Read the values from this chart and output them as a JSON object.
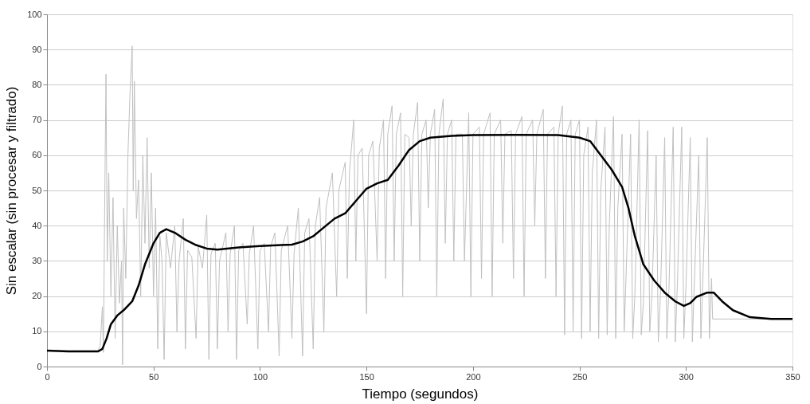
{
  "chart_data": {
    "type": "line",
    "xlabel": "Tiempo (segundos)",
    "ylabel": "Sin escalar (sin procesar y filtrado)",
    "xlim": [
      0,
      350
    ],
    "xticks": [
      0,
      50,
      100,
      150,
      200,
      250,
      300,
      350
    ],
    "ylim": [
      0,
      100
    ],
    "yticks": [
      0,
      10,
      20,
      30,
      40,
      50,
      60,
      70,
      80,
      90,
      100
    ],
    "grid": "y",
    "marker": "none",
    "line_style": "solid",
    "series": [
      {
        "color": "#c0c0c0",
        "x": [
          0,
          20,
          24,
          25,
          26,
          26.5,
          27,
          27.7,
          28.3,
          29,
          30,
          31,
          32,
          33,
          34,
          35,
          35.5,
          36,
          37,
          38,
          39,
          40,
          40.5,
          41,
          42,
          43,
          44,
          45,
          46,
          47,
          48,
          49,
          50,
          51,
          52,
          53,
          54,
          55,
          56,
          58,
          60,
          61,
          62,
          64,
          65,
          66,
          68,
          70,
          71,
          73,
          75,
          76,
          77,
          79,
          80,
          81,
          84,
          85,
          86,
          88,
          89,
          90,
          92,
          94,
          95,
          97,
          99,
          100,
          102,
          104,
          105,
          107,
          109,
          110,
          113,
          115,
          116,
          118,
          120,
          121,
          123,
          125,
          126,
          128,
          130,
          131,
          134,
          136,
          137,
          140,
          141,
          142,
          144,
          145,
          146,
          148,
          150,
          151,
          153,
          155,
          156,
          158,
          159,
          160,
          162,
          163,
          164,
          166,
          167,
          168,
          170,
          171,
          172,
          174,
          175,
          176,
          178,
          179,
          180,
          182,
          183,
          184,
          186,
          187,
          188,
          190,
          191,
          192,
          195,
          196,
          198,
          199,
          200,
          203,
          204,
          205,
          208,
          209,
          210,
          213,
          214,
          215,
          218,
          219,
          220,
          223,
          224,
          225,
          228,
          229,
          230,
          233,
          234,
          235,
          238,
          239,
          240,
          242,
          243,
          244,
          246,
          247,
          248,
          250,
          251,
          252,
          254,
          255,
          256,
          258,
          259,
          260,
          262,
          263,
          264,
          266,
          267,
          268,
          270,
          271,
          272,
          274,
          275,
          276,
          278,
          279,
          280,
          282,
          283,
          284,
          286,
          287,
          288,
          290,
          291,
          292,
          294,
          295,
          296,
          298,
          299,
          300,
          302,
          303,
          304,
          306,
          307,
          308,
          310,
          311,
          312,
          312.5,
          320,
          330,
          350
        ],
        "values": [
          4.5,
          4.5,
          4.5,
          6,
          17,
          4,
          40,
          83,
          30,
          55,
          20,
          48,
          8,
          40,
          18,
          30,
          0.5,
          45,
          25,
          60,
          78,
          91,
          50,
          81,
          42,
          53,
          20,
          60,
          35,
          65,
          28,
          55,
          20,
          45,
          5,
          37,
          30,
          2,
          38,
          28,
          40,
          10,
          30,
          42,
          5,
          33,
          31,
          8,
          34,
          28,
          43,
          2,
          32,
          35,
          5,
          30,
          38,
          10,
          32,
          40,
          2,
          33,
          35,
          12,
          32,
          40,
          5,
          33,
          35,
          10,
          34,
          38,
          3,
          33,
          40,
          8,
          32,
          45,
          3,
          38,
          42,
          5,
          40,
          48,
          10,
          45,
          55,
          20,
          50,
          58,
          25,
          55,
          70,
          30,
          60,
          62,
          15,
          60,
          64,
          30,
          62,
          70,
          25,
          66,
          74,
          30,
          66,
          72,
          20,
          66,
          65,
          40,
          66,
          75,
          30,
          66,
          70,
          45,
          66,
          73,
          20,
          66,
          76,
          35,
          66,
          70,
          30,
          66,
          66,
          30,
          72,
          20,
          66,
          68,
          25,
          66,
          72,
          20,
          66,
          70,
          35,
          66,
          67,
          25,
          66,
          71,
          20,
          66,
          70,
          40,
          66,
          73,
          25,
          66,
          68,
          20,
          66,
          74,
          9,
          66,
          70,
          10,
          66,
          70,
          8,
          60,
          68,
          10,
          55,
          70,
          8,
          50,
          68,
          9,
          40,
          71,
          8,
          45,
          66,
          10,
          28,
          66,
          8,
          20,
          70,
          9,
          18,
          67,
          10,
          20,
          60,
          7,
          20,
          65,
          8,
          22,
          68,
          7,
          24,
          68,
          8,
          23,
          65,
          7,
          25,
          60,
          8,
          26,
          65,
          8,
          25,
          13.5,
          13.5,
          13.5,
          13.5
        ]
      },
      {
        "color": "#000000",
        "x": [
          0,
          10,
          24,
          26,
          28,
          30,
          33,
          36,
          40,
          43,
          46,
          50,
          53,
          56,
          60,
          65,
          70,
          75,
          80,
          90,
          100,
          110,
          115,
          120,
          125,
          130,
          135,
          140,
          145,
          150,
          155,
          160,
          165,
          170,
          175,
          180,
          190,
          200,
          220,
          240,
          250,
          255,
          260,
          265,
          270,
          273,
          276,
          280,
          285,
          290,
          295,
          299,
          302,
          305,
          310,
          313,
          317,
          322,
          330,
          340,
          350
        ],
        "values": [
          4.5,
          4.3,
          4.3,
          5,
          8,
          12,
          14.5,
          16,
          18.5,
          23,
          29,
          35,
          38,
          39,
          38,
          36,
          34.5,
          33.5,
          33.2,
          33.8,
          34.2,
          34.5,
          34.6,
          35.5,
          37,
          39.5,
          42,
          43.5,
          47,
          50.5,
          52,
          53,
          57,
          61.5,
          64,
          65,
          65.5,
          65.7,
          65.8,
          65.7,
          65,
          64,
          60,
          56,
          51,
          45,
          37,
          29,
          24.5,
          21,
          18.5,
          17.2,
          18,
          19.8,
          21,
          21,
          18.5,
          16,
          14,
          13.5,
          13.5
        ]
      }
    ]
  }
}
